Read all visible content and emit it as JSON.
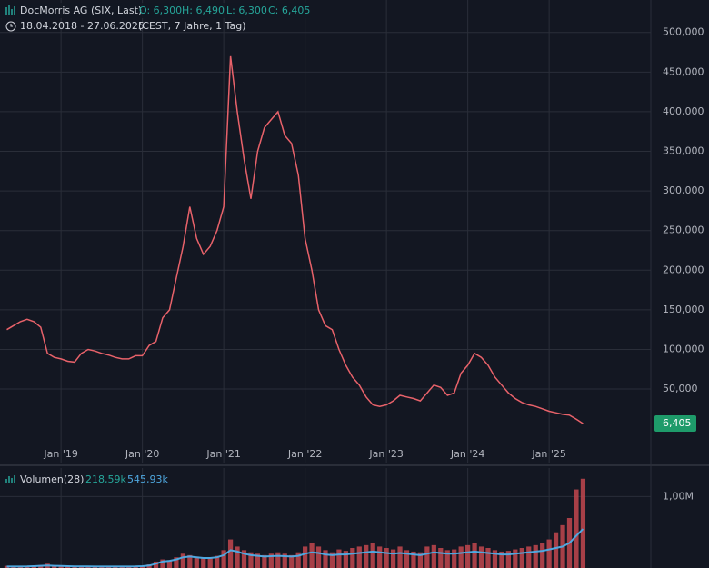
{
  "chart_data": [
    {
      "type": "line",
      "title": "DocMorris AG (SIX, Last)",
      "ohlc_labels": [
        "O: 6,300",
        "H: 6,490",
        "L: 6,300",
        "C: 6,405"
      ],
      "subtitle": "18.04.2018 - 27.06.2025",
      "subtitle_note": "(CEST, 7 Jahre, 1 Tag)",
      "x": [
        "2018-05",
        "2018-06",
        "2018-07",
        "2018-08",
        "2018-09",
        "2018-10",
        "2018-11",
        "2018-12",
        "2019-01",
        "2019-02",
        "2019-03",
        "2019-04",
        "2019-05",
        "2019-06",
        "2019-07",
        "2019-08",
        "2019-09",
        "2019-10",
        "2019-11",
        "2019-12",
        "2020-01",
        "2020-02",
        "2020-03",
        "2020-04",
        "2020-05",
        "2020-06",
        "2020-07",
        "2020-08",
        "2020-09",
        "2020-10",
        "2020-11",
        "2020-12",
        "2021-01",
        "2021-02",
        "2021-03",
        "2021-04",
        "2021-05",
        "2021-06",
        "2021-07",
        "2021-08",
        "2021-09",
        "2021-10",
        "2021-11",
        "2021-12",
        "2022-01",
        "2022-02",
        "2022-03",
        "2022-04",
        "2022-05",
        "2022-06",
        "2022-07",
        "2022-08",
        "2022-09",
        "2022-10",
        "2022-11",
        "2022-12",
        "2023-01",
        "2023-02",
        "2023-03",
        "2023-04",
        "2023-05",
        "2023-06",
        "2023-07",
        "2023-08",
        "2023-09",
        "2023-10",
        "2023-11",
        "2023-12",
        "2024-01",
        "2024-02",
        "2024-03",
        "2024-04",
        "2024-05",
        "2024-06",
        "2024-07",
        "2024-08",
        "2024-09",
        "2024-10",
        "2024-11",
        "2024-12",
        "2025-01",
        "2025-02",
        "2025-03",
        "2025-04",
        "2025-05",
        "2025-06"
      ],
      "series": [
        {
          "color": "#e8626a",
          "values": [
            125000,
            130000,
            135000,
            138000,
            135000,
            128000,
            95000,
            90000,
            88000,
            85000,
            84000,
            95000,
            100000,
            98000,
            95000,
            93000,
            90000,
            88000,
            88000,
            92000,
            92000,
            105000,
            110000,
            140000,
            150000,
            190000,
            230000,
            280000,
            240000,
            220000,
            230000,
            250000,
            280000,
            470000,
            400000,
            340000,
            290000,
            350000,
            380000,
            390000,
            400000,
            370000,
            360000,
            320000,
            240000,
            200000,
            150000,
            130000,
            125000,
            100000,
            80000,
            65000,
            55000,
            40000,
            30000,
            28000,
            30000,
            35000,
            42000,
            40000,
            38000,
            35000,
            45000,
            55000,
            52000,
            42000,
            45000,
            70000,
            80000,
            95000,
            90000,
            80000,
            65000,
            55000,
            45000,
            38000,
            33000,
            30000,
            28000,
            25000,
            22000,
            20000,
            18000,
            17000,
            12000,
            6405
          ]
        }
      ],
      "last_price": {
        "value": 6405,
        "label": "6,405"
      },
      "xlim": [
        "2018-04",
        "2026-04"
      ],
      "xticks": [
        {
          "value": "2019-01",
          "label": "Jan '19"
        },
        {
          "value": "2020-01",
          "label": "Jan '20"
        },
        {
          "value": "2021-01",
          "label": "Jan '21"
        },
        {
          "value": "2022-01",
          "label": "Jan '22"
        },
        {
          "value": "2023-01",
          "label": "Jan '23"
        },
        {
          "value": "2024-01",
          "label": "Jan '24"
        },
        {
          "value": "2025-01",
          "label": "Jan '25"
        }
      ],
      "ylim": [
        -44000,
        541000
      ],
      "yticks": [
        {
          "value": 50000,
          "label": "50,000"
        },
        {
          "value": 100000,
          "label": "100,000"
        },
        {
          "value": 150000,
          "label": "150,000"
        },
        {
          "value": 200000,
          "label": "200,000"
        },
        {
          "value": 250000,
          "label": "250,000"
        },
        {
          "value": 300000,
          "label": "300,000"
        },
        {
          "value": 350000,
          "label": "350,000"
        },
        {
          "value": 400000,
          "label": "400,000"
        },
        {
          "value": 450000,
          "label": "450,000"
        },
        {
          "value": 500000,
          "label": "500,000"
        }
      ],
      "grid": true
    },
    {
      "type": "bar",
      "title": "Volumen(28)",
      "legend_values": [
        "218,59k",
        "545,93k"
      ],
      "series": [
        {
          "color": "#c2464e",
          "values": [
            30000,
            25000,
            20000,
            25000,
            30000,
            40000,
            60000,
            35000,
            30000,
            25000,
            25000,
            30000,
            25000,
            20000,
            20000,
            25000,
            20000,
            25000,
            20000,
            30000,
            30000,
            50000,
            90000,
            120000,
            100000,
            150000,
            200000,
            180000,
            160000,
            140000,
            150000,
            170000,
            250000,
            400000,
            300000,
            250000,
            220000,
            200000,
            180000,
            200000,
            220000,
            200000,
            180000,
            220000,
            300000,
            350000,
            300000,
            250000,
            220000,
            260000,
            240000,
            280000,
            300000,
            320000,
            350000,
            300000,
            280000,
            260000,
            300000,
            250000,
            230000,
            220000,
            300000,
            320000,
            280000,
            250000,
            260000,
            300000,
            320000,
            350000,
            300000,
            280000,
            250000,
            230000,
            240000,
            260000,
            280000,
            300000,
            320000,
            350000,
            400000,
            500000,
            600000,
            700000,
            1100000,
            1250000
          ]
        },
        {
          "color": "#4fa8e0",
          "values": [
            20000,
            20000,
            20000,
            22000,
            25000,
            30000,
            35000,
            30000,
            28000,
            25000,
            22000,
            22000,
            22000,
            20000,
            20000,
            20000,
            20000,
            20000,
            20000,
            22000,
            25000,
            35000,
            60000,
            90000,
            100000,
            120000,
            150000,
            160000,
            150000,
            140000,
            140000,
            150000,
            180000,
            250000,
            230000,
            200000,
            180000,
            170000,
            160000,
            165000,
            170000,
            165000,
            160000,
            170000,
            200000,
            220000,
            210000,
            190000,
            180000,
            190000,
            190000,
            200000,
            210000,
            220000,
            230000,
            220000,
            210000,
            200000,
            210000,
            200000,
            190000,
            180000,
            200000,
            220000,
            210000,
            200000,
            200000,
            210000,
            220000,
            230000,
            220000,
            210000,
            200000,
            190000,
            190000,
            200000,
            210000,
            220000,
            230000,
            240000,
            260000,
            280000,
            300000,
            350000,
            450000,
            545930
          ]
        }
      ],
      "ylim": [
        0,
        1400000
      ],
      "yticks": [
        {
          "value": 1000000,
          "label": "1,00M"
        }
      ],
      "grid": true
    }
  ]
}
